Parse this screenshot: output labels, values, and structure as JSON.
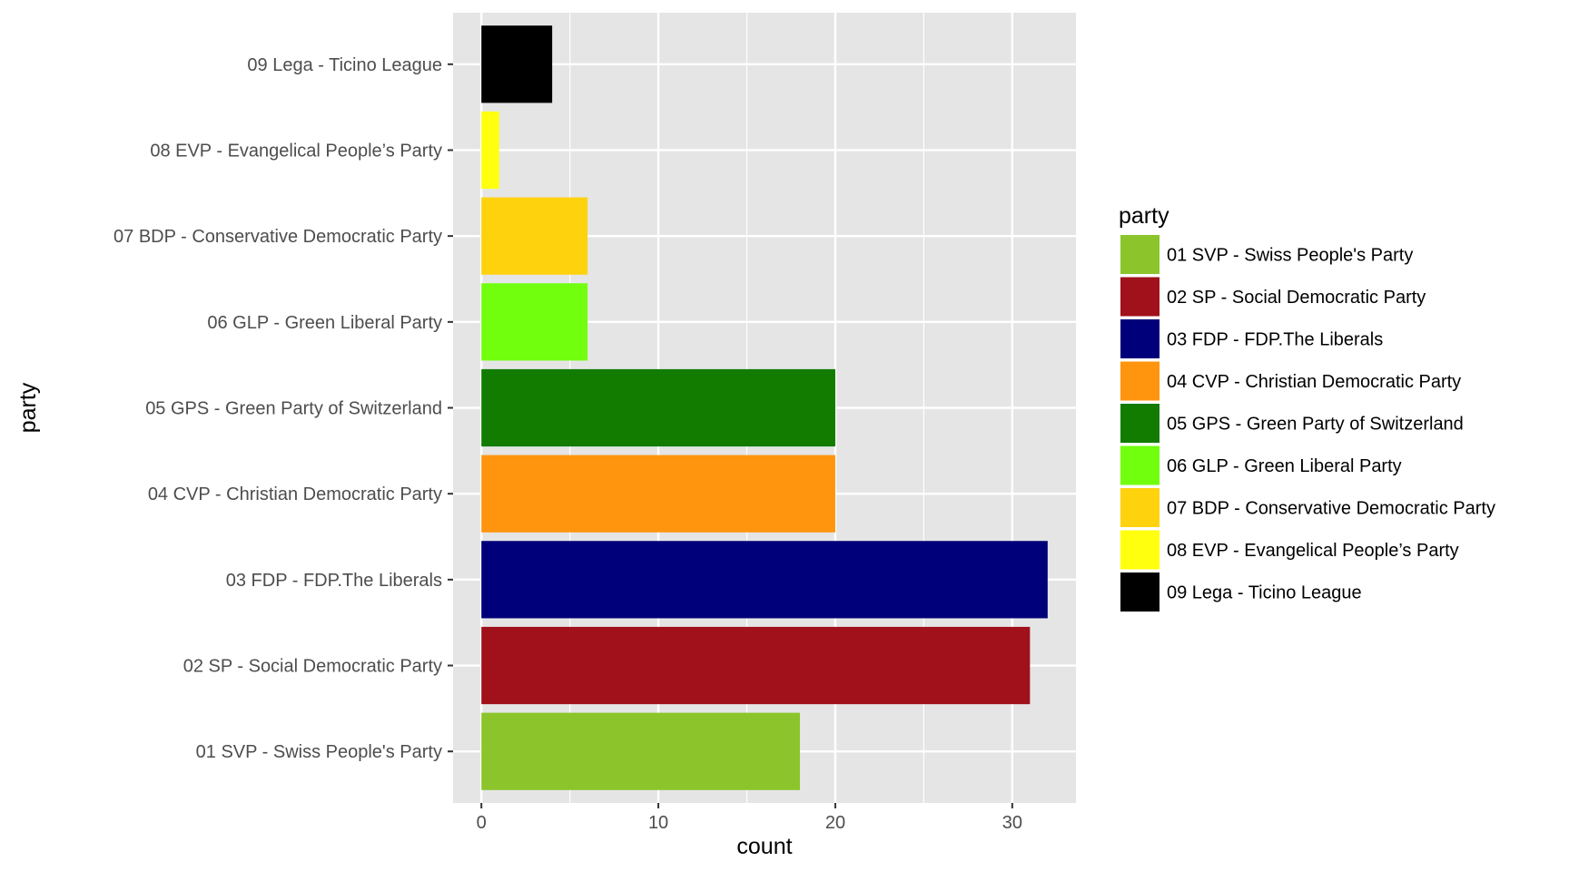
{
  "chart_data": {
    "type": "bar",
    "orientation": "horizontal",
    "categories": [
      "01 SVP - Swiss People's Party",
      "02 SP - Social Democratic Party",
      "03 FDP - FDP.The Liberals",
      "04 CVP - Christian Democratic Party",
      "05 GPS - Green Party of Switzerland",
      "06 GLP - Green Liberal Party",
      "07 BDP - Conservative Democratic Party",
      "08 EVP - Evangelical People’s Party",
      "09 Lega - Ticino League"
    ],
    "values": [
      18,
      31,
      32,
      20,
      20,
      6,
      6,
      1,
      4
    ],
    "colors": [
      "#8BC52B",
      "#A0111B",
      "#00007A",
      "#FF950E",
      "#117C00",
      "#71FF0E",
      "#FFD20E",
      "#FFFF0E",
      "#000000"
    ],
    "xlabel": "count",
    "ylabel": "party",
    "xlim": [
      -1.6,
      33.6
    ],
    "xticks": [
      0,
      10,
      20,
      30
    ],
    "x_minor_ticks": [
      5,
      15,
      25
    ],
    "grid": true,
    "panel_background": "#E5E5E5",
    "legend": {
      "title": "party",
      "placement": "right",
      "entries": [
        "01 SVP - Swiss People's Party",
        "02 SP - Social Democratic Party",
        "03 FDP - FDP.The Liberals",
        "04 CVP - Christian Democratic Party",
        "05 GPS - Green Party of Switzerland",
        "06 GLP - Green Liberal Party",
        "07 BDP - Conservative Democratic Party",
        "08 EVP - Evangelical People’s Party",
        "09 Lega - Ticino League"
      ]
    }
  }
}
